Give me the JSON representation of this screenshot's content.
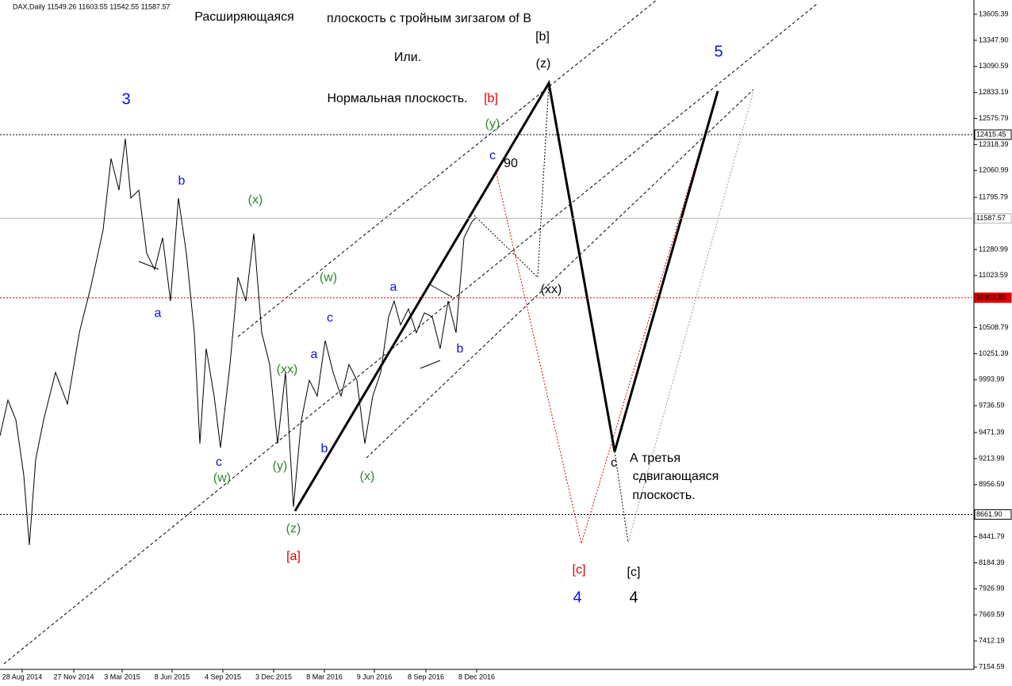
{
  "chart_data": {
    "type": "line",
    "header": "DAX,Daily  11549.26 11603.55 11542.55 11587.57",
    "series": [
      {
        "name": "DAX",
        "color": "#000000",
        "x": [
          0,
          10,
          20,
          30,
          37,
          45,
          55,
          70,
          85,
          100,
          115,
          130,
          140,
          150,
          158,
          165,
          175,
          185,
          195,
          205,
          215,
          225,
          235,
          245,
          252,
          260,
          270,
          278,
          290,
          300,
          310,
          320,
          330,
          340,
          350,
          360,
          370,
          380,
          390,
          400,
          410,
          420,
          430,
          440,
          450,
          460,
          470,
          480,
          490,
          497,
          505,
          515,
          525,
          535,
          545,
          555,
          565,
          575,
          585,
          595,
          600
        ],
        "values": [
          9440,
          9792,
          9597,
          9049,
          8360,
          9205,
          9597,
          10066,
          9753,
          10458,
          10928,
          11476,
          12180,
          11867,
          12376,
          11789,
          11867,
          11241,
          11084,
          11397,
          10771,
          11789,
          11241,
          10458,
          9362,
          10301,
          9832,
          9323,
          10145,
          11006,
          10771,
          11437,
          10458,
          10145,
          9362,
          10066,
          8736,
          9597,
          9988,
          9832,
          10380,
          10066,
          9832,
          10145,
          9988,
          9362,
          9832,
          10066,
          10615,
          10771,
          10536,
          10693,
          10458,
          10654,
          10615,
          10301,
          10771,
          10458,
          11397,
          11554,
          11593
        ]
      }
    ],
    "xlim": [
      0,
      1228
    ],
    "ylim": [
      7131.1,
      13746.3
    ],
    "xticks": [
      {
        "value": 28,
        "label": "28 Aug 2014"
      },
      {
        "value": 93,
        "label": "27 Nov 2014"
      },
      {
        "value": 154,
        "label": "3 Mar 2015"
      },
      {
        "value": 217,
        "label": "8 Jun 2015"
      },
      {
        "value": 281,
        "label": "4 Sep 2015"
      },
      {
        "value": 345,
        "label": "3 Dec 2015"
      },
      {
        "value": 409,
        "label": "8 Mar 2016"
      },
      {
        "value": 472,
        "label": "9 Jun 2016"
      },
      {
        "value": 537,
        "label": "8 Sep 2016"
      },
      {
        "value": 601,
        "label": "8 Dec 2016"
      }
    ],
    "yticks": [
      13605.39,
      {
        "value": 13347.9,
        "label": "13347.90"
      },
      13090.59,
      12833.19,
      12575.79,
      12318.39,
      12060.99,
      11795.79,
      11280.99,
      11023.59,
      10508.79,
      10251.39,
      9993.99,
      9736.59,
      9471.39,
      9213.99,
      8956.59,
      8441.79,
      8184.39,
      7926.99,
      7669.59,
      7412.19,
      7154.59
    ],
    "hlines": [
      {
        "value": 12415.45,
        "color": "#000000"
      },
      {
        "value": 11587.57,
        "color": "#b0b0b0"
      },
      {
        "value": 10803.85,
        "color": "#e00000"
      },
      {
        "value": 8661.9,
        "label": "8661.90",
        "color": "#000000"
      }
    ],
    "annotations": [
      {
        "text": "Расширяющаяся",
        "color": "#000000"
      },
      {
        "text": "плоскость с тройным зигзагом of B",
        "color": "#000000"
      },
      {
        "text": "[b]",
        "color": "#000000"
      },
      {
        "text": "Или.",
        "color": "#000000"
      },
      {
        "text": "(z)",
        "color": "#000000"
      },
      {
        "text": "5",
        "color": "#1010e0"
      },
      {
        "text": "3",
        "color": "#1010e0"
      },
      {
        "text": "Нормальная плоскость.",
        "color": "#000000"
      },
      {
        "text": "[b]",
        "color": "#e00000"
      },
      {
        "text": "(y)",
        "color": "#2a8a2a"
      },
      {
        "text": "c",
        "color": "#1010e0"
      },
      {
        "text": "90",
        "color": "#000000"
      },
      {
        "text": "b",
        "color": "#1010e0"
      },
      {
        "text": "(x)",
        "color": "#2a8a2a"
      },
      {
        "text": "(w)",
        "color": "#2a8a2a"
      },
      {
        "text": "a",
        "color": "#1010e0"
      },
      {
        "text": "(xx)",
        "color": "#000000"
      },
      {
        "text": "a",
        "color": "#1010e0"
      },
      {
        "text": "c",
        "color": "#1010e0"
      },
      {
        "text": "b",
        "color": "#1010e0"
      },
      {
        "text": "a",
        "color": "#1010e0"
      },
      {
        "text": "(xx)",
        "color": "#2a8a2a"
      },
      {
        "text": "b",
        "color": "#1010e0"
      },
      {
        "text": "c",
        "color": "#1010e0"
      },
      {
        "text": "c",
        "color": "#000000"
      },
      {
        "text": "А третья",
        "color": "#000000"
      },
      {
        "text": "сдвигающаяся",
        "color": "#000000"
      },
      {
        "text": "плоскость.",
        "color": "#000000"
      },
      {
        "text": "(y)",
        "color": "#2a8a2a"
      },
      {
        "text": "(w)",
        "color": "#2a8a2a"
      },
      {
        "text": "(x)",
        "color": "#2a8a2a"
      },
      {
        "text": "(z)",
        "color": "#2a8a2a"
      },
      {
        "text": "[a]",
        "color": "#e00000"
      },
      {
        "text": "[c]",
        "color": "#e00000"
      },
      {
        "text": "[c]",
        "color": "#000000"
      },
      {
        "text": "4",
        "color": "#1010e0"
      },
      {
        "text": "4",
        "color": "#000000"
      }
    ]
  }
}
